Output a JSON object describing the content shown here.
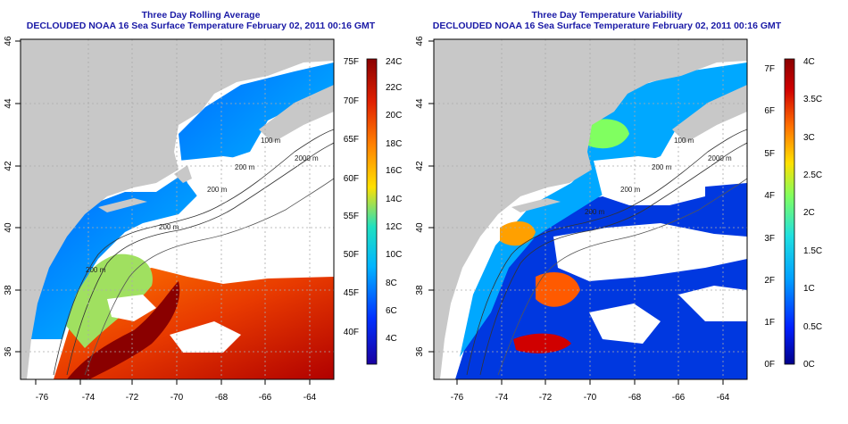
{
  "panels": [
    {
      "title": "Three Day Rolling Average",
      "subtitle": "DECLOUDED NOAA 16 Sea Surface Temperature February 02, 2011 00:16 GMT",
      "lon_ticks": [
        "-76",
        "-74",
        "-72",
        "-70",
        "-68",
        "-66",
        "-64"
      ],
      "lat_ticks": [
        "46",
        "44",
        "42",
        "40",
        "38",
        "36"
      ],
      "contour_labels": [
        "100 m",
        "200 m",
        "2000 m",
        "200 m",
        "200 m",
        "200 m"
      ],
      "colorbar": {
        "left_labels": [
          "75F",
          "70F",
          "65F",
          "60F",
          "55F",
          "50F",
          "45F",
          "40F"
        ],
        "right_labels": [
          "24C",
          "22C",
          "20C",
          "18C",
          "16C",
          "14C",
          "12C",
          "10C",
          "8C",
          "6C",
          "4C"
        ],
        "colors": [
          "#1a00a0",
          "#0030ff",
          "#00b4ff",
          "#20e0c0",
          "#ffe000",
          "#ff8000",
          "#e02000",
          "#8a0000"
        ]
      }
    },
    {
      "title": "Three Day Temperature Variability",
      "subtitle": "DECLOUDED NOAA 16 Sea Surface Temperature February 02, 2011 00:16 GMT",
      "lon_ticks": [
        "-76",
        "-74",
        "-72",
        "-70",
        "-68",
        "-66",
        "-64"
      ],
      "lat_ticks": [
        "46",
        "44",
        "42",
        "40",
        "38",
        "36"
      ],
      "contour_labels": [
        "100 m",
        "200 m",
        "2000 m",
        "200 m",
        "200 m"
      ],
      "colorbar": {
        "left_labels": [
          "7F",
          "6F",
          "5F",
          "4F",
          "3F",
          "2F",
          "1F",
          "0F"
        ],
        "right_labels": [
          "4C",
          "3.5C",
          "3C",
          "2.5C",
          "2C",
          "1.5C",
          "1C",
          "0.5C",
          "0C"
        ],
        "colors": [
          "#00008a",
          "#0020ff",
          "#00a0ff",
          "#20e0e0",
          "#80ff60",
          "#ffe000",
          "#ff7000",
          "#d00000",
          "#8a0000"
        ]
      }
    }
  ]
}
